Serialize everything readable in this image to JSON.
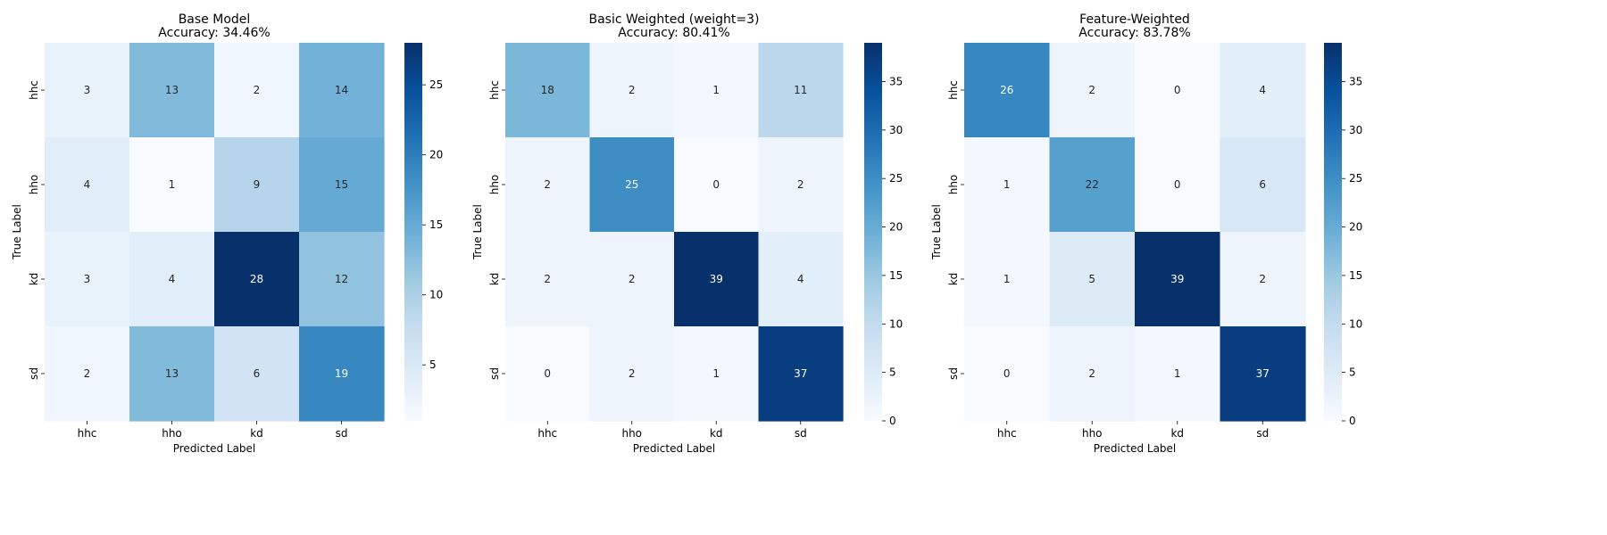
{
  "chart_data": [
    {
      "type": "heatmap",
      "title": "Base Model",
      "subtitle": "Accuracy: 34.46%",
      "xlabel": "Predicted Label",
      "ylabel": "True Label",
      "x_categories": [
        "hhc",
        "hho",
        "kd",
        "sd"
      ],
      "y_categories": [
        "hhc",
        "hho",
        "kd",
        "sd"
      ],
      "matrix": [
        [
          3,
          13,
          2,
          14
        ],
        [
          4,
          1,
          9,
          15
        ],
        [
          3,
          4,
          28,
          12
        ],
        [
          2,
          13,
          6,
          19
        ]
      ],
      "vmin": 1,
      "vmax": 28,
      "colorbar_ticks": [
        5,
        10,
        15,
        20,
        25
      ],
      "colormap": "Blues"
    },
    {
      "type": "heatmap",
      "title": "Basic Weighted (weight=3)",
      "subtitle": "Accuracy: 80.41%",
      "xlabel": "Predicted Label",
      "ylabel": "True Label",
      "x_categories": [
        "hhc",
        "hho",
        "kd",
        "sd"
      ],
      "y_categories": [
        "hhc",
        "hho",
        "kd",
        "sd"
      ],
      "matrix": [
        [
          18,
          2,
          1,
          11
        ],
        [
          2,
          25,
          0,
          2
        ],
        [
          2,
          2,
          39,
          4
        ],
        [
          0,
          2,
          1,
          37
        ]
      ],
      "vmin": 0,
      "vmax": 39,
      "colorbar_ticks": [
        0,
        5,
        10,
        15,
        20,
        25,
        30,
        35
      ],
      "colormap": "Blues"
    },
    {
      "type": "heatmap",
      "title": "Feature-Weighted",
      "subtitle": "Accuracy: 83.78%",
      "xlabel": "Predicted Label",
      "ylabel": "True Label",
      "x_categories": [
        "hhc",
        "hho",
        "kd",
        "sd"
      ],
      "y_categories": [
        "hhc",
        "hho",
        "kd",
        "sd"
      ],
      "matrix": [
        [
          26,
          2,
          0,
          4
        ],
        [
          1,
          22,
          0,
          6
        ],
        [
          1,
          5,
          39,
          2
        ],
        [
          0,
          2,
          1,
          37
        ]
      ],
      "vmin": 0,
      "vmax": 39,
      "colorbar_ticks": [
        0,
        5,
        10,
        15,
        20,
        25,
        30,
        35
      ],
      "colormap": "Blues"
    }
  ]
}
